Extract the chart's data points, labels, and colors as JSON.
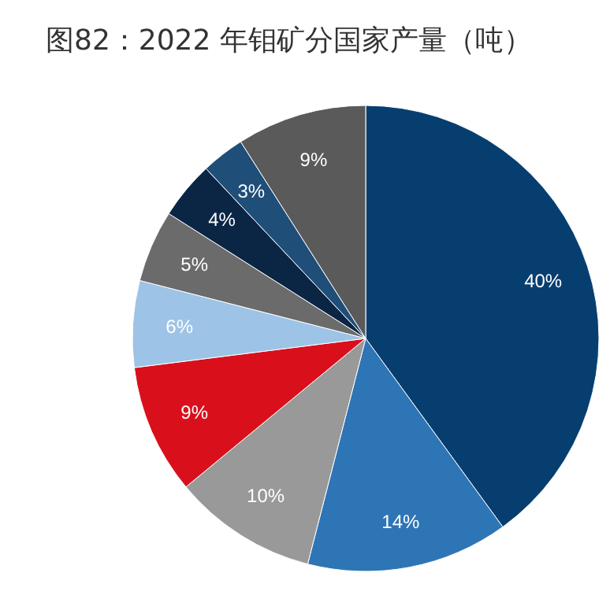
{
  "chart_data": {
    "type": "pie",
    "title": "图82：2022 年钼矿分国家产量（吨）",
    "categories": [
      null,
      null,
      null,
      null,
      null,
      null,
      null,
      null,
      null
    ],
    "values": [
      40,
      14,
      10,
      9,
      6,
      5,
      4,
      3,
      9
    ],
    "value_labels": [
      "40%",
      "14%",
      "10%",
      "9%",
      "6%",
      "5%",
      "4%",
      "3%",
      "9%"
    ],
    "colors": [
      "#073e70",
      "#2e75b6",
      "#999999",
      "#d9101c",
      "#9dc3e6",
      "#6b6b6b",
      "#0b2545",
      "#1f4e79",
      "#5a5a5a"
    ]
  }
}
